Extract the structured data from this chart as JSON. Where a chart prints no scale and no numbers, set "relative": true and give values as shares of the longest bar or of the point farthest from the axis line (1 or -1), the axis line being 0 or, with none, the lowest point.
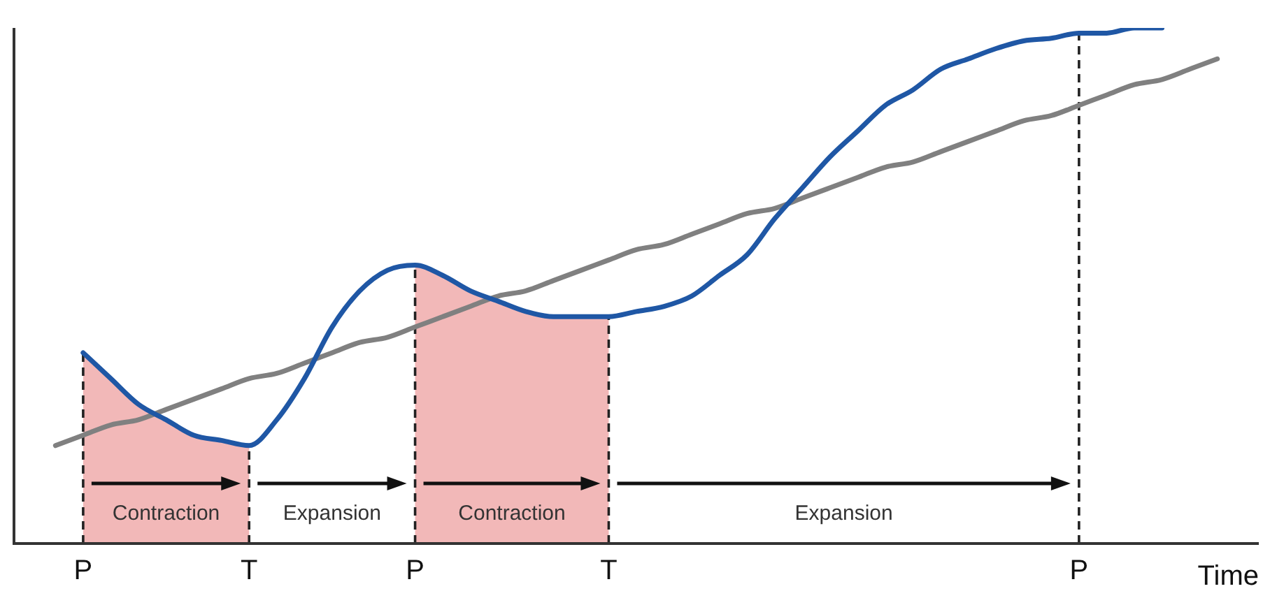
{
  "chart_data": {
    "type": "line",
    "relative": true,
    "xlabel": "Time",
    "legend": false,
    "grid": "x",
    "marker": "none",
    "line_style": "solid",
    "categories": [
      null,
      null,
      "P",
      null,
      null,
      null,
      null,
      null,
      "T",
      null,
      null,
      null,
      null,
      null,
      "P",
      null,
      null,
      null,
      null,
      null,
      null,
      "T",
      null,
      null,
      null,
      null,
      null,
      null,
      null,
      null,
      null,
      null,
      null,
      null,
      null,
      null,
      null,
      null,
      "P",
      null,
      null,
      null,
      null,
      null,
      null
    ],
    "series": [
      {
        "color": "#1f57a5",
        "values": [
          null,
          null,
          0.37,
          0.32,
          0.27,
          0.24,
          0.21,
          0.2,
          0.19,
          0.24,
          0.32,
          0.42,
          0.49,
          0.53,
          0.54,
          0.52,
          0.49,
          0.47,
          0.45,
          0.44,
          0.44,
          0.44,
          0.45,
          0.46,
          0.48,
          0.52,
          0.56,
          0.63,
          0.69,
          0.75,
          0.8,
          0.85,
          0.88,
          0.92,
          0.94,
          0.96,
          0.975,
          0.98,
          0.99,
          0.99,
          1.0,
          1.0,
          null,
          null,
          null
        ]
      },
      {
        "color": "#808080",
        "values": [
          null,
          0.19,
          0.21,
          0.23,
          0.24,
          0.26,
          0.28,
          0.3,
          0.32,
          0.33,
          0.35,
          0.37,
          0.39,
          0.4,
          0.42,
          0.44,
          0.46,
          0.48,
          0.49,
          0.51,
          0.53,
          0.55,
          0.57,
          0.58,
          0.6,
          0.62,
          0.64,
          0.65,
          0.67,
          0.69,
          0.71,
          0.73,
          0.74,
          0.76,
          0.78,
          0.8,
          0.82,
          0.83,
          0.85,
          0.87,
          0.89,
          0.9,
          0.92,
          0.94,
          null
        ]
      }
    ],
    "annotations": [
      "Contraction",
      "Expansion",
      "Contraction",
      "Expansion"
    ]
  }
}
